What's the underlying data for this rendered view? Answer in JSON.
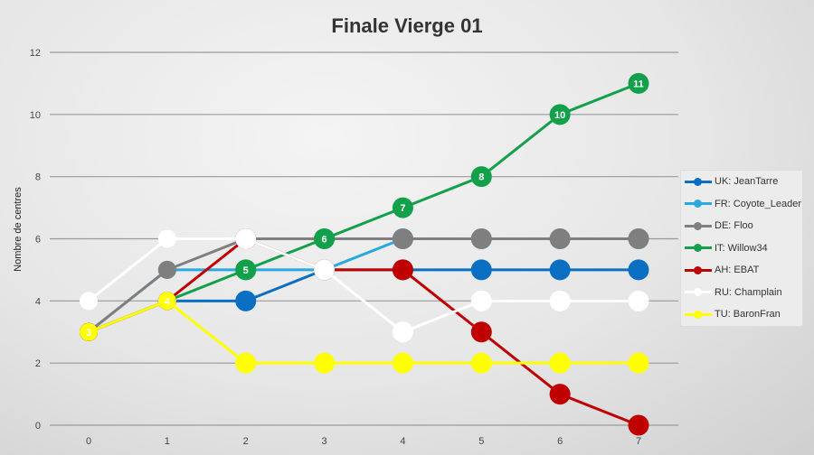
{
  "chart_data": {
    "type": "line",
    "title": "Finale Vierge 01",
    "xlabel": "",
    "ylabel": "Nombre de centres",
    "x": [
      0,
      1,
      2,
      3,
      4,
      5,
      6,
      7
    ],
    "ylim": [
      0,
      12
    ],
    "yticks": [
      0,
      2,
      4,
      6,
      8,
      10,
      12
    ],
    "grid": true,
    "legend_position": "right",
    "series": [
      {
        "name": "UK: JeanTarre",
        "color": "#0a6fc2",
        "values": [
          3,
          4,
          4,
          5,
          5,
          5,
          5,
          5
        ]
      },
      {
        "name": "FR: Coyote_Leader",
        "color": "#2aa8e0",
        "values": [
          3,
          5,
          5,
          5,
          6,
          6,
          6,
          6
        ]
      },
      {
        "name": "DE: Floo",
        "color": "#7f7f7f",
        "values": [
          3,
          5,
          6,
          6,
          6,
          6,
          6,
          6
        ]
      },
      {
        "name": "IT: Willow34",
        "color": "#13a04a",
        "values": [
          3,
          4,
          5,
          6,
          7,
          8,
          10,
          11
        ],
        "labels": [
          null,
          null,
          "5",
          "6",
          "7",
          "8",
          "10",
          "11"
        ]
      },
      {
        "name": "AH: EBAT",
        "color": "#c00000",
        "values": [
          3,
          4,
          6,
          5,
          5,
          3,
          1,
          0
        ]
      },
      {
        "name": "RU: Champlain",
        "color": "#ffffff",
        "values": [
          4,
          6,
          6,
          5,
          3,
          4,
          4,
          4
        ]
      },
      {
        "name": "TU: BaronFran",
        "color": "#ffff00",
        "values": [
          3,
          4,
          2,
          2,
          2,
          2,
          2,
          2
        ],
        "labels": [
          "3",
          "4",
          null,
          null,
          null,
          null,
          null,
          null
        ]
      }
    ]
  }
}
